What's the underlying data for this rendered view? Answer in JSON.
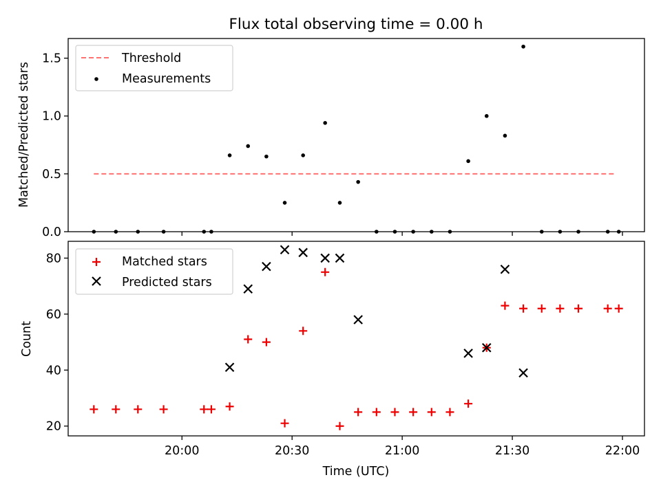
{
  "figure": {
    "title": "Flux total observing time = 0.00 h",
    "xlabel": "Time (UTC)"
  },
  "colors": {
    "threshold": "#ff7070",
    "measurement": "#000000",
    "matched": "#ee0000",
    "predicted": "#000000"
  },
  "chart_data": [
    {
      "type": "scatter",
      "ylabel": "Matched/Predicted stars",
      "ylim": [
        0,
        1.67
      ],
      "yticks": [
        0,
        0.5,
        1.0,
        1.5
      ],
      "ytick_labels": [
        "0.0",
        "0.5",
        "1.0",
        "1.5"
      ],
      "x_is_time": true,
      "xlim": [
        "19:29",
        "22:06"
      ],
      "xticks": [
        "20:00",
        "20:30",
        "21:00",
        "21:30",
        "22:00"
      ],
      "show_xtick_labels": false,
      "grid": false,
      "legend": "upper-left",
      "series": [
        {
          "name": "Threshold",
          "kind": "dashed-line",
          "x": [
            "19:36",
            "21:58"
          ],
          "y": [
            0.5,
            0.5
          ]
        },
        {
          "name": "Measurements",
          "kind": "dot",
          "x": [
            "19:36",
            "19:42",
            "19:48",
            "19:55",
            "20:06",
            "20:08",
            "20:13",
            "20:18",
            "20:23",
            "20:28",
            "20:33",
            "20:39",
            "20:43",
            "20:48",
            "20:53",
            "20:58",
            "21:03",
            "21:08",
            "21:13",
            "21:18",
            "21:23",
            "21:28",
            "21:33",
            "21:38",
            "21:43",
            "21:48",
            "21:56",
            "21:59"
          ],
          "y": [
            0,
            0,
            0,
            0,
            0,
            0,
            0.66,
            0.74,
            0.65,
            0.25,
            0.66,
            0.94,
            0.25,
            0.43,
            0,
            0,
            0,
            0,
            0,
            0.61,
            1.0,
            0.83,
            1.6,
            0,
            0,
            0,
            0,
            0
          ]
        }
      ]
    },
    {
      "type": "scatter",
      "ylabel": "Count",
      "ylim": [
        16.5,
        86
      ],
      "yticks": [
        20,
        40,
        60,
        80
      ],
      "ytick_labels": [
        "20",
        "40",
        "60",
        "80"
      ],
      "x_is_time": true,
      "xlim": [
        "19:29",
        "22:06"
      ],
      "xticks": [
        "20:00",
        "20:30",
        "21:00",
        "21:30",
        "22:00"
      ],
      "xtick_labels": [
        "20:00",
        "20:30",
        "21:00",
        "21:30",
        "22:00"
      ],
      "show_xtick_labels": true,
      "grid": false,
      "legend": "upper-left",
      "series": [
        {
          "name": "Matched stars",
          "kind": "plus",
          "x": [
            "19:36",
            "19:42",
            "19:48",
            "19:55",
            "20:06",
            "20:08",
            "20:13",
            "20:18",
            "20:23",
            "20:28",
            "20:33",
            "20:39",
            "20:43",
            "20:48",
            "20:53",
            "20:58",
            "21:03",
            "21:08",
            "21:13",
            "21:18",
            "21:23",
            "21:28",
            "21:33",
            "21:38",
            "21:43",
            "21:48",
            "21:56",
            "21:59"
          ],
          "y": [
            26,
            26,
            26,
            26,
            26,
            26,
            27,
            51,
            50,
            21,
            54,
            75,
            20,
            25,
            25,
            25,
            25,
            25,
            25,
            28,
            48,
            63,
            62,
            62,
            62,
            62,
            62,
            62
          ]
        },
        {
          "name": "Predicted stars",
          "kind": "cross",
          "x": [
            "20:13",
            "20:18",
            "20:23",
            "20:28",
            "20:33",
            "20:39",
            "20:43",
            "20:48",
            "21:18",
            "21:23",
            "21:28",
            "21:33"
          ],
          "y": [
            41,
            69,
            77,
            83,
            82,
            80,
            80,
            58,
            46,
            48,
            76,
            39
          ]
        }
      ]
    }
  ]
}
